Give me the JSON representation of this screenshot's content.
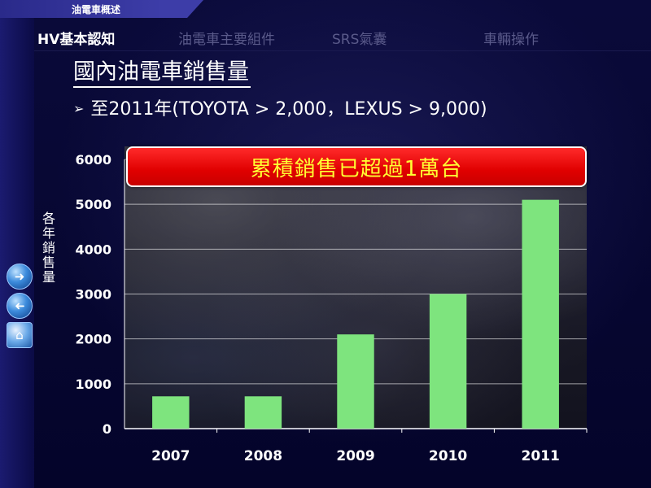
{
  "header": {
    "section_label": "油電車概述"
  },
  "nav": {
    "items": [
      {
        "label": "HV基本認知",
        "active": true
      },
      {
        "label": "油電車主要組件",
        "active": false
      },
      {
        "label": "SRS氣囊",
        "active": false
      },
      {
        "label": "車輛操作",
        "active": false
      }
    ]
  },
  "slide": {
    "title": "國內油電車銷售量",
    "bullet_marker": "➢",
    "bullet": "至2011年(TOYOTA > 2,000，LEXUS > 9,000)",
    "banner": "累積銷售已超過1萬台"
  },
  "side_nav": [
    {
      "icon": "next-arrow-icon"
    },
    {
      "icon": "previous-arrow-icon"
    },
    {
      "icon": "home-icon"
    }
  ],
  "chart_data": {
    "type": "bar",
    "categories": [
      "2007",
      "2008",
      "2009",
      "2010",
      "2011"
    ],
    "values": [
      720,
      720,
      2100,
      3000,
      5100
    ],
    "ylabel": "各年銷售量",
    "xlabel": "",
    "ylim": [
      0,
      6000
    ],
    "yticks": [
      0,
      1000,
      2000,
      3000,
      4000,
      5000,
      6000
    ],
    "grid": true,
    "bar_color": "#7ee47e",
    "grid_color": "#ffffff"
  }
}
